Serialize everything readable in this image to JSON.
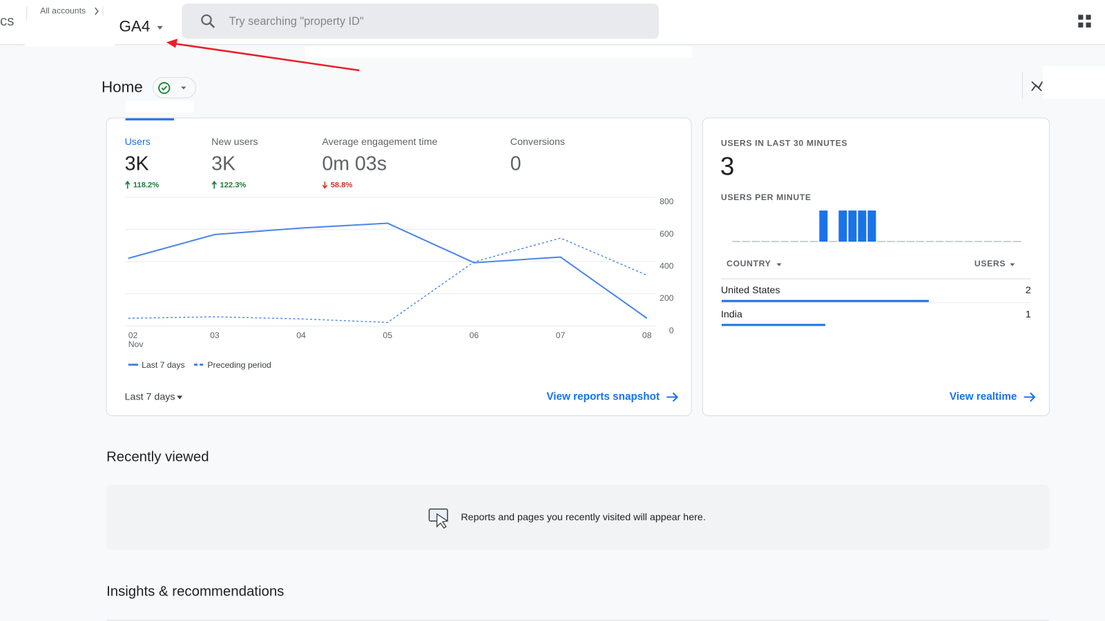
{
  "header": {
    "product_fragment": "cs",
    "breadcrumb": "All accounts",
    "property": "GA4",
    "search_placeholder": "Try searching \"property ID\""
  },
  "home": {
    "title": "Home"
  },
  "overview": {
    "metrics": [
      {
        "label": "Users",
        "value": "3K",
        "change": "118.2%",
        "direction": "up"
      },
      {
        "label": "New users",
        "value": "3K",
        "change": "122.3%",
        "direction": "up"
      },
      {
        "label": "Average engagement time",
        "value": "0m 03s",
        "change": "58.8%",
        "direction": "down"
      },
      {
        "label": "Conversions",
        "value": "0"
      }
    ],
    "chart": {
      "type": "line",
      "categories": [
        "02",
        "03",
        "04",
        "05",
        "06",
        "07",
        "08"
      ],
      "x_month_label": "Nov",
      "series": [
        {
          "name": "Last 7 days",
          "color": "#4a86e8",
          "line_style": "solid",
          "values": [
            420,
            568,
            608,
            638,
            393,
            428,
            48
          ]
        },
        {
          "name": "Preceding period",
          "color": "#4a86e8",
          "line_style": "dashed",
          "values": [
            48,
            57,
            44,
            22,
            398,
            546,
            315
          ]
        }
      ],
      "ylim": [
        0,
        800
      ],
      "yticks": [
        0,
        200,
        400,
        600,
        800
      ],
      "grid": true
    },
    "date_range": "Last 7 days",
    "link": "View reports snapshot"
  },
  "realtime": {
    "title": "USERS IN LAST 30 MINUTES",
    "value": 3,
    "subtitle": "USERS PER MINUTE",
    "per_minute": {
      "type": "bar",
      "color": "#1a73e8",
      "ylim": [
        0,
        1
      ],
      "values": [
        0,
        0,
        0,
        0,
        0,
        0,
        0,
        0,
        0,
        1,
        0,
        1,
        1,
        1,
        1,
        0,
        0,
        0,
        0,
        0,
        0,
        0,
        0,
        0,
        0,
        0,
        0,
        0,
        0,
        0
      ]
    },
    "table": {
      "columns": [
        "COUNTRY",
        "USERS"
      ],
      "rows": [
        {
          "country": "United States",
          "users": 2
        },
        {
          "country": "India",
          "users": 1
        }
      ]
    },
    "link": "View realtime"
  },
  "recently_viewed": {
    "title": "Recently viewed",
    "empty_message": "Reports and pages you recently visited will appear here."
  },
  "insights": {
    "title": "Insights & recommendations"
  }
}
